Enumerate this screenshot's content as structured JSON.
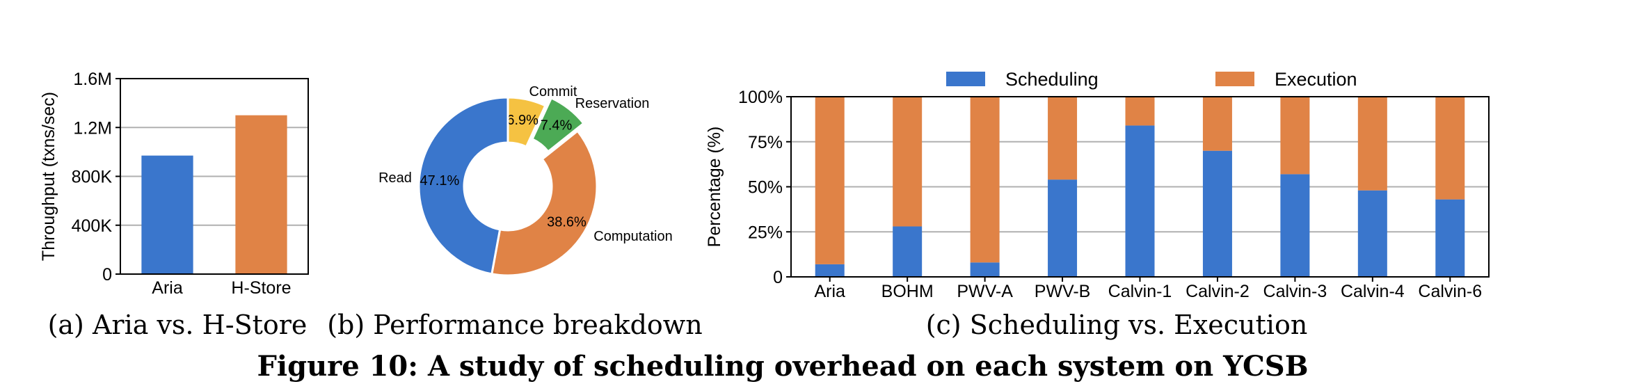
{
  "chart_data": [
    {
      "type": "bar",
      "categories": [
        "Aria",
        "H-Store"
      ],
      "values": [
        970000,
        1300000
      ],
      "colors": [
        "#3a76cc",
        "#e08346"
      ],
      "ylabel": "Throughput (txns/sec)",
      "ylim": [
        0,
        1600000
      ],
      "yticks": [
        0,
        400000,
        800000,
        1200000,
        1600000
      ],
      "ytick_labels": [
        "0",
        "400K",
        "800K",
        "1.2M",
        "1.6M"
      ],
      "grid": true,
      "caption": "(a) Aria vs. H-Store"
    },
    {
      "type": "pie",
      "donut": true,
      "slices": [
        {
          "label": "Commit",
          "value": 6.9,
          "pct_label": "6.9%",
          "color": "#f5c242",
          "exploded": false
        },
        {
          "label": "Reservation",
          "value": 7.4,
          "pct_label": "7.4%",
          "color": "#4caa55",
          "exploded": true
        },
        {
          "label": "Computation",
          "value": 38.6,
          "pct_label": "38.6%",
          "color": "#e08346",
          "exploded": false
        },
        {
          "label": "Read",
          "value": 47.1,
          "pct_label": "47.1%",
          "color": "#3a76cc",
          "exploded": false
        }
      ],
      "caption": "(b) Performance breakdown"
    },
    {
      "type": "bar",
      "stacked": true,
      "categories": [
        "Aria",
        "BOHM",
        "PWV-A",
        "PWV-B",
        "Calvin-1",
        "Calvin-2",
        "Calvin-3",
        "Calvin-4",
        "Calvin-6"
      ],
      "series": [
        {
          "name": "Scheduling",
          "color": "#3a76cc",
          "values": [
            7,
            28,
            8,
            54,
            84,
            70,
            57,
            48,
            43
          ]
        },
        {
          "name": "Execution",
          "color": "#e08346",
          "values": [
            93,
            72,
            92,
            46,
            16,
            30,
            43,
            52,
            57
          ]
        }
      ],
      "ylabel": "Percentage (%)",
      "ylim": [
        0,
        100
      ],
      "yticks": [
        0,
        25,
        50,
        75,
        100
      ],
      "ytick_labels": [
        "0",
        "25%",
        "50%",
        "75%",
        "100%"
      ],
      "grid": true,
      "legend": "top",
      "caption": "(c) Scheduling vs. Execution"
    }
  ],
  "figure_title": "Figure 10: A study of scheduling overhead on each system on YCSB"
}
